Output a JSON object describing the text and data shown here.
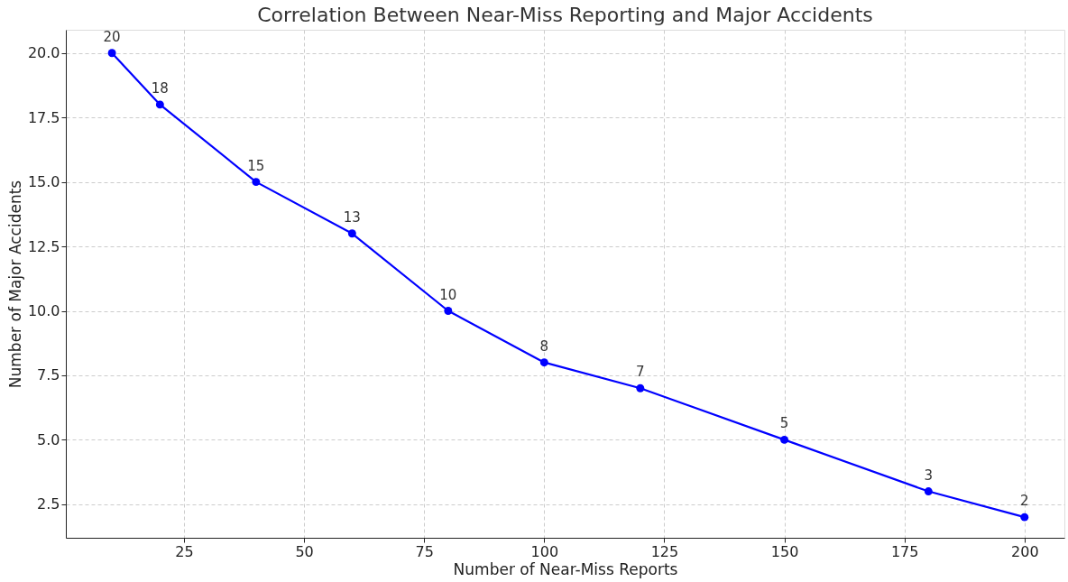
{
  "chart_data": {
    "type": "line",
    "title": "Correlation Between Near-Miss Reporting and Major Accidents",
    "xlabel": "Number of Near-Miss Reports",
    "ylabel": "Number of Major Accidents",
    "x": [
      10,
      20,
      40,
      60,
      80,
      100,
      120,
      150,
      180,
      200
    ],
    "series": [
      {
        "color": "#0000ff",
        "values": [
          20,
          18,
          15,
          13,
          10,
          8,
          7,
          5,
          3,
          2
        ]
      }
    ],
    "xlim": [
      0.4,
      208.3
    ],
    "xticks": [
      25,
      50,
      75,
      100,
      125,
      150,
      175,
      200
    ],
    "ylim": [
      1.2,
      20.9
    ],
    "yticks": [
      {
        "value": 2.5,
        "label": "2.5"
      },
      {
        "value": 5,
        "label": "5.0"
      },
      {
        "value": 7.5,
        "label": "7.5"
      },
      {
        "value": 10,
        "label": "10.0"
      },
      {
        "value": 12.5,
        "label": "12.5"
      },
      {
        "value": 15,
        "label": "15.0"
      },
      {
        "value": 17.5,
        "label": "17.5"
      },
      {
        "value": 20,
        "label": "20.0"
      }
    ],
    "grid": true,
    "marker": "circle",
    "line_style": "solid",
    "data_labels": true
  }
}
